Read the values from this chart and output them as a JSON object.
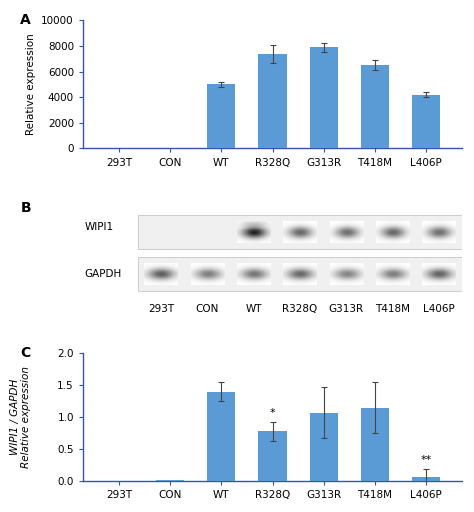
{
  "panel_A": {
    "categories": [
      "293T",
      "CON",
      "WT",
      "R328Q",
      "G313R",
      "T418M",
      "L406P"
    ],
    "values": [
      0,
      0,
      5000,
      7350,
      7900,
      6500,
      4200
    ],
    "errors": [
      0,
      0,
      200,
      700,
      350,
      400,
      200
    ],
    "ylim": [
      0,
      10000
    ],
    "yticks": [
      0,
      2000,
      4000,
      6000,
      8000,
      10000
    ],
    "ylabel": "Relative expression",
    "label": "A"
  },
  "panel_B": {
    "categories": [
      "293T",
      "CON",
      "WT",
      "R328Q",
      "G313R",
      "T418M",
      "L406P"
    ],
    "wipi1_intensity": [
      0.0,
      0.0,
      0.95,
      0.65,
      0.62,
      0.65,
      0.62
    ],
    "gapdh_intensity": [
      0.72,
      0.58,
      0.62,
      0.68,
      0.55,
      0.58,
      0.7
    ],
    "label": "B"
  },
  "panel_C": {
    "categories": [
      "293T",
      "CON",
      "WT",
      "R328Q",
      "G313R",
      "T418M",
      "L406P"
    ],
    "values": [
      0,
      0.02,
      1.4,
      0.78,
      1.07,
      1.15,
      0.07
    ],
    "errors": [
      0,
      0,
      0.15,
      0.15,
      0.4,
      0.4,
      0.12
    ],
    "ylim": [
      0,
      2.0
    ],
    "yticks": [
      0,
      0.5,
      1.0,
      1.5,
      2.0
    ],
    "ylabel_italic": "WIPI1 / GAPDH",
    "ylabel_normal": "Relative expression",
    "label": "C",
    "star_positions": {
      "R328Q": "*",
      "L406P": "**"
    }
  },
  "bar_color": "#5b9bd5",
  "spine_color": "#3355aa",
  "tick_label_color": "#000000",
  "ylabel_color": "#000000",
  "background_color": "#ffffff",
  "font_size": 7.5,
  "label_font_size": 10,
  "blot_bg": "#f0f0f0",
  "blot_border": "#bbbbbb"
}
